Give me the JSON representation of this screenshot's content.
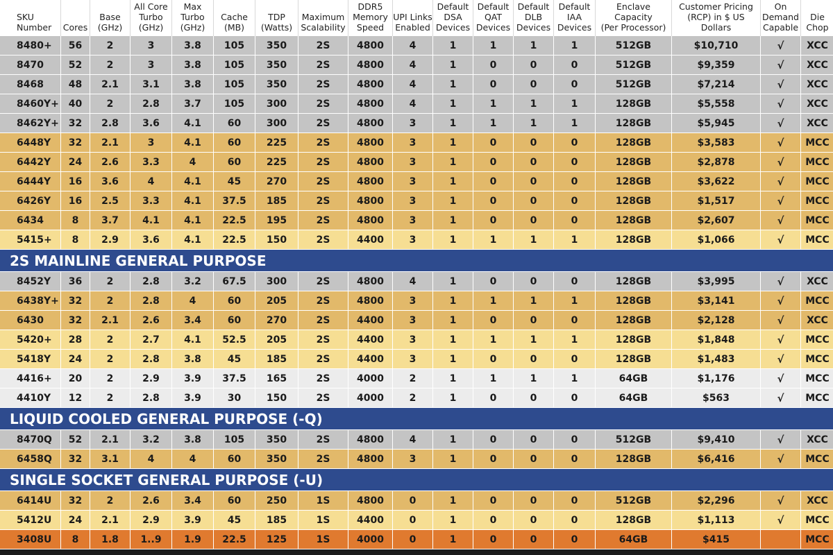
{
  "colors": {
    "section_blue": "#2e4b8e",
    "row_gray": "#c4c4c4",
    "row_light_gray": "#ececec",
    "row_gold": "#e2b96a",
    "row_light_gold": "#f6de93",
    "row_orange": "#e07a2f"
  },
  "headers": [
    "SKU Number",
    "Cores",
    "Base (GHz)",
    "All Core Turbo (GHz)",
    "Max Turbo (GHz)",
    "Cache (MB)",
    "TDP (Watts)",
    "Maximum Scalability",
    "DDR5 Memory Speed",
    "UPI Links Enabled",
    "Default DSA Devices",
    "Default QAT Devices",
    "Default DLB Devices",
    "Default IAA Devices",
    "Intel SGX Enclave Capacity (Per Processor)",
    "Customer Pricing (RCP) in $ US Dollars",
    "Intel On Demand Capable",
    "Die Chop"
  ],
  "header_lines": [
    [
      "SKU",
      "Number"
    ],
    [
      "Cores"
    ],
    [
      "Base",
      "(GHz)"
    ],
    [
      "All Core",
      "Turbo",
      "(GHz)"
    ],
    [
      "Max",
      "Turbo",
      "(GHz)"
    ],
    [
      "Cache",
      "(MB)"
    ],
    [
      "TDP",
      "(Watts)"
    ],
    [
      "Maximum",
      "Scalability"
    ],
    [
      "DDR5",
      "Memory",
      "Speed"
    ],
    [
      "UPI Links",
      "Enabled"
    ],
    [
      "Default",
      "DSA",
      "Devices"
    ],
    [
      "Default",
      "QAT",
      "Devices"
    ],
    [
      "Default",
      "DLB",
      "Devices"
    ],
    [
      "Default",
      "IAA",
      "Devices"
    ],
    [
      "Intel SGX Enclave",
      "Capacity",
      "(Per Processor)"
    ],
    [
      "Customer Pricing",
      "(RCP) in $ US",
      "Dollars"
    ],
    [
      "Intel® On",
      "Demand",
      "Capable"
    ],
    [
      "Die",
      "Chop"
    ]
  ],
  "rows": [
    {
      "type": "data",
      "color": "gray",
      "cells": [
        "8480+",
        "56",
        "2",
        "3",
        "3.8",
        "105",
        "350",
        "2S",
        "4800",
        "4",
        "1",
        "1",
        "1",
        "1",
        "512GB",
        "$10,710",
        "√",
        "XCC"
      ]
    },
    {
      "type": "data",
      "color": "gray",
      "cells": [
        "8470",
        "52",
        "2",
        "3",
        "3.8",
        "105",
        "350",
        "2S",
        "4800",
        "4",
        "1",
        "0",
        "0",
        "0",
        "512GB",
        "$9,359",
        "√",
        "XCC"
      ]
    },
    {
      "type": "data",
      "color": "gray",
      "cells": [
        "8468",
        "48",
        "2.1",
        "3.1",
        "3.8",
        "105",
        "350",
        "2S",
        "4800",
        "4",
        "1",
        "0",
        "0",
        "0",
        "512GB",
        "$7,214",
        "√",
        "XCC"
      ]
    },
    {
      "type": "data",
      "color": "gray",
      "cells": [
        "8460Y+",
        "40",
        "2",
        "2.8",
        "3.7",
        "105",
        "300",
        "2S",
        "4800",
        "4",
        "1",
        "1",
        "1",
        "1",
        "128GB",
        "$5,558",
        "√",
        "XCC"
      ]
    },
    {
      "type": "data",
      "color": "gray",
      "cells": [
        "8462Y+",
        "32",
        "2.8",
        "3.6",
        "4.1",
        "60",
        "300",
        "2S",
        "4800",
        "3",
        "1",
        "1",
        "1",
        "1",
        "128GB",
        "$5,945",
        "√",
        "XCC"
      ]
    },
    {
      "type": "data",
      "color": "gold",
      "cells": [
        "6448Y",
        "32",
        "2.1",
        "3",
        "4.1",
        "60",
        "225",
        "2S",
        "4800",
        "3",
        "1",
        "0",
        "0",
        "0",
        "128GB",
        "$3,583",
        "√",
        "MCC"
      ]
    },
    {
      "type": "data",
      "color": "gold",
      "cells": [
        "6442Y",
        "24",
        "2.6",
        "3.3",
        "4",
        "60",
        "225",
        "2S",
        "4800",
        "3",
        "1",
        "0",
        "0",
        "0",
        "128GB",
        "$2,878",
        "√",
        "MCC"
      ]
    },
    {
      "type": "data",
      "color": "gold",
      "cells": [
        "6444Y",
        "16",
        "3.6",
        "4",
        "4.1",
        "45",
        "270",
        "2S",
        "4800",
        "3",
        "1",
        "0",
        "0",
        "0",
        "128GB",
        "$3,622",
        "√",
        "MCC"
      ]
    },
    {
      "type": "data",
      "color": "gold",
      "cells": [
        "6426Y",
        "16",
        "2.5",
        "3.3",
        "4.1",
        "37.5",
        "185",
        "2S",
        "4800",
        "3",
        "1",
        "0",
        "0",
        "0",
        "128GB",
        "$1,517",
        "√",
        "MCC"
      ]
    },
    {
      "type": "data",
      "color": "gold",
      "cells": [
        "6434",
        "8",
        "3.7",
        "4.1",
        "4.1",
        "22.5",
        "195",
        "2S",
        "4800",
        "3",
        "1",
        "0",
        "0",
        "0",
        "128GB",
        "$2,607",
        "√",
        "MCC"
      ]
    },
    {
      "type": "data",
      "color": "lightgold",
      "cells": [
        "5415+",
        "8",
        "2.9",
        "3.6",
        "4.1",
        "22.5",
        "150",
        "2S",
        "4400",
        "3",
        "1",
        "1",
        "1",
        "1",
        "128GB",
        "$1,066",
        "√",
        "MCC"
      ]
    },
    {
      "type": "section",
      "label": "2S MAINLINE GENERAL PURPOSE"
    },
    {
      "type": "data",
      "color": "gray",
      "cells": [
        "8452Y",
        "36",
        "2",
        "2.8",
        "3.2",
        "67.5",
        "300",
        "2S",
        "4800",
        "4",
        "1",
        "0",
        "0",
        "0",
        "128GB",
        "$3,995",
        "√",
        "XCC"
      ]
    },
    {
      "type": "data",
      "color": "gold",
      "cells": [
        "6438Y+",
        "32",
        "2",
        "2.8",
        "4",
        "60",
        "205",
        "2S",
        "4800",
        "3",
        "1",
        "1",
        "1",
        "1",
        "128GB",
        "$3,141",
        "√",
        "MCC"
      ]
    },
    {
      "type": "data",
      "color": "gold",
      "cells": [
        "6430",
        "32",
        "2.1",
        "2.6",
        "3.4",
        "60",
        "270",
        "2S",
        "4400",
        "3",
        "1",
        "0",
        "0",
        "0",
        "128GB",
        "$2,128",
        "√",
        "XCC"
      ]
    },
    {
      "type": "data",
      "color": "lightgold",
      "cells": [
        "5420+",
        "28",
        "2",
        "2.7",
        "4.1",
        "52.5",
        "205",
        "2S",
        "4400",
        "3",
        "1",
        "1",
        "1",
        "1",
        "128GB",
        "$1,848",
        "√",
        "MCC"
      ]
    },
    {
      "type": "data",
      "color": "lightgold",
      "cells": [
        "5418Y",
        "24",
        "2",
        "2.8",
        "3.8",
        "45",
        "185",
        "2S",
        "4400",
        "3",
        "1",
        "0",
        "0",
        "0",
        "128GB",
        "$1,483",
        "√",
        "MCC"
      ]
    },
    {
      "type": "data",
      "color": "lightgray",
      "cells": [
        "4416+",
        "20",
        "2",
        "2.9",
        "3.9",
        "37.5",
        "165",
        "2S",
        "4000",
        "2",
        "1",
        "1",
        "1",
        "1",
        "64GB",
        "$1,176",
        "√",
        "MCC"
      ]
    },
    {
      "type": "data",
      "color": "lightgray",
      "cells": [
        "4410Y",
        "12",
        "2",
        "2.8",
        "3.9",
        "30",
        "150",
        "2S",
        "4000",
        "2",
        "1",
        "0",
        "0",
        "0",
        "64GB",
        "$563",
        "√",
        "MCC"
      ]
    },
    {
      "type": "section",
      "label": "LIQUID COOLED GENERAL PURPOSE (-Q)"
    },
    {
      "type": "data",
      "color": "gray",
      "cells": [
        "8470Q",
        "52",
        "2.1",
        "3.2",
        "3.8",
        "105",
        "350",
        "2S",
        "4800",
        "4",
        "1",
        "0",
        "0",
        "0",
        "512GB",
        "$9,410",
        "√",
        "XCC"
      ]
    },
    {
      "type": "data",
      "color": "gold",
      "cells": [
        "6458Q",
        "32",
        "3.1",
        "4",
        "4",
        "60",
        "350",
        "2S",
        "4800",
        "3",
        "1",
        "0",
        "0",
        "0",
        "128GB",
        "$6,416",
        "√",
        "MCC"
      ]
    },
    {
      "type": "section",
      "label": "SINGLE SOCKET GENERAL PURPOSE (-U)"
    },
    {
      "type": "data",
      "color": "gold",
      "cells": [
        "6414U",
        "32",
        "2",
        "2.6",
        "3.4",
        "60",
        "250",
        "1S",
        "4800",
        "0",
        "1",
        "0",
        "0",
        "0",
        "512GB",
        "$2,296",
        "√",
        "XCC"
      ]
    },
    {
      "type": "data",
      "color": "lightgold",
      "cells": [
        "5412U",
        "24",
        "2.1",
        "2.9",
        "3.9",
        "45",
        "185",
        "1S",
        "4400",
        "0",
        "1",
        "0",
        "0",
        "0",
        "128GB",
        "$1,113",
        "√",
        "MCC"
      ]
    },
    {
      "type": "data",
      "color": "orange",
      "cells": [
        "3408U",
        "8",
        "1.8",
        "1..9",
        "1.9",
        "22.5",
        "125",
        "1S",
        "4000",
        "0",
        "1",
        "0",
        "0",
        "0",
        "64GB",
        "$415",
        "",
        "MCC"
      ]
    }
  ]
}
